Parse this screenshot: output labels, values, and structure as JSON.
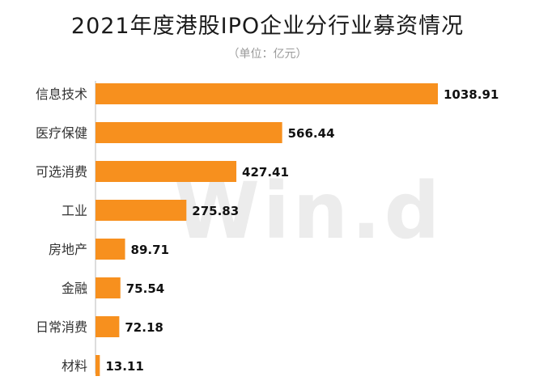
{
  "watermark": "Win.d",
  "chart_data": {
    "type": "bar",
    "orientation": "horizontal",
    "title": "2021年度港股IPO企业分行业募资情况",
    "subtitle": "（单位：亿元）",
    "categories": [
      "信息技术",
      "医疗保健",
      "可选消费",
      "工业",
      "房地产",
      "金融",
      "日常消费",
      "材料"
    ],
    "values": [
      1038.91,
      566.44,
      427.41,
      275.83,
      89.71,
      75.54,
      72.18,
      13.11
    ],
    "value_labels": [
      "1038.91",
      "566.44",
      "427.41",
      "275.83",
      "89.71",
      "75.54",
      "72.18",
      "13.11"
    ],
    "bar_color": "#f7901e",
    "xlim": [
      0,
      1038.91
    ],
    "grid": false,
    "legend": "none"
  }
}
